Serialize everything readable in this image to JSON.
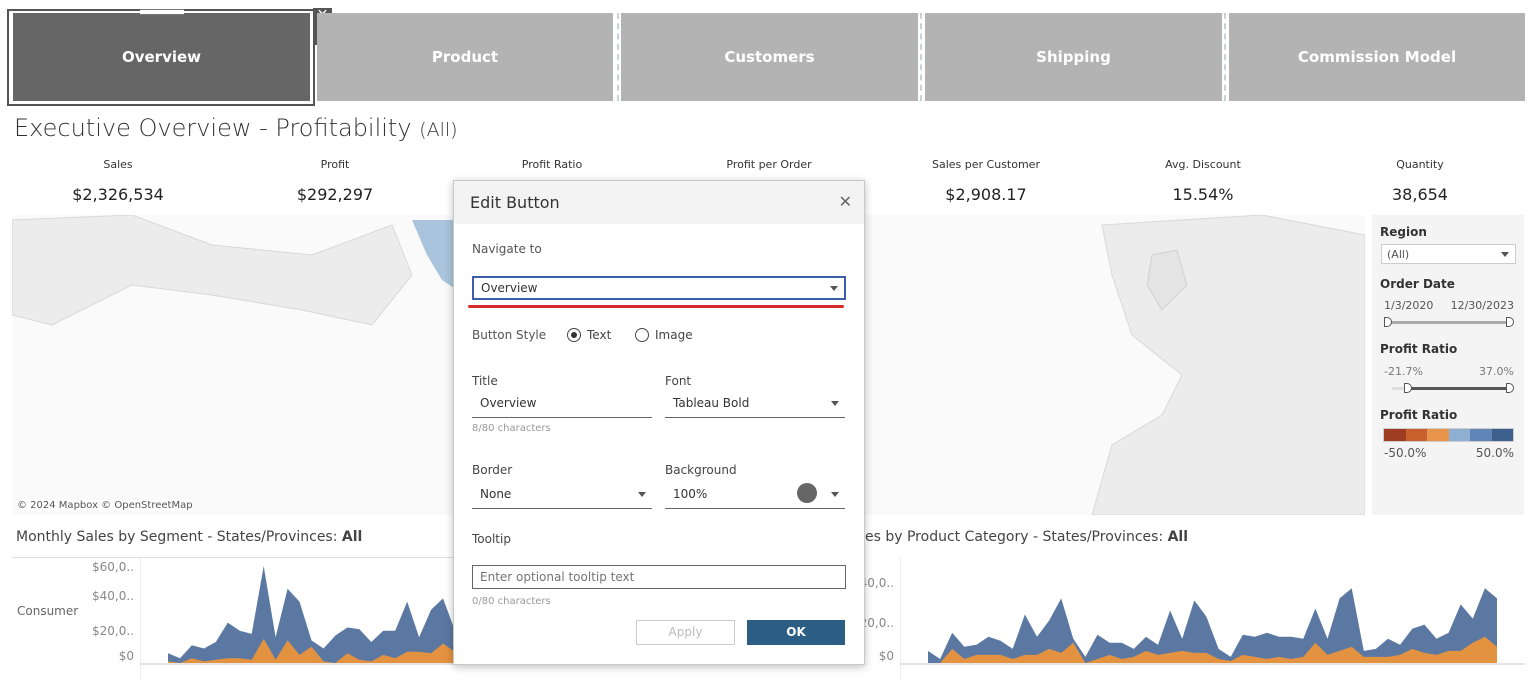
{
  "nav": {
    "buttons": [
      "Overview",
      "Product",
      "Customers",
      "Shipping",
      "Commission Model"
    ],
    "active": "Overview"
  },
  "title": {
    "main": "Executive Overview - Profitability",
    "filter": "(All)"
  },
  "kpis": [
    {
      "label": "Sales",
      "value": "$2,326,534"
    },
    {
      "label": "Profit",
      "value": "$292,297"
    },
    {
      "label": "Profit Ratio",
      "value": ""
    },
    {
      "label": "Profit per Order",
      "value": ""
    },
    {
      "label": "Sales per Customer",
      "value": "$2,908.17"
    },
    {
      "label": "Avg. Discount",
      "value": "15.54%"
    },
    {
      "label": "Quantity",
      "value": "38,654"
    }
  ],
  "map": {
    "attribution": "© 2024 Mapbox © OpenStreetMap"
  },
  "filters": {
    "region_label": "Region",
    "region_value": "(All)",
    "order_date_label": "Order Date",
    "order_date_min": "1/3/2020",
    "order_date_max": "12/30/2023",
    "profit_ratio_label": "Profit Ratio",
    "profit_ratio_min": "-21.7%",
    "profit_ratio_max": "37.0%",
    "legend_label": "Profit Ratio",
    "legend_min": "-50.0%",
    "legend_max": "50.0%",
    "legend_colors": [
      "#9e3d22",
      "#c8602c",
      "#e8944a",
      "#8fb0d3",
      "#5f86b7",
      "#3c5f8e"
    ]
  },
  "dialog": {
    "title": "Edit Button",
    "navigate_label": "Navigate to",
    "navigate_value": "Overview",
    "style_label": "Button Style",
    "style_text": "Text",
    "style_image": "Image",
    "title_label": "Title",
    "title_value": "Overview",
    "title_count": "8/80 characters",
    "font_label": "Font",
    "font_value": "Tableau Bold",
    "border_label": "Border",
    "border_value": "None",
    "background_label": "Background",
    "background_value": "100%",
    "background_color": "#666666",
    "tooltip_label": "Tooltip",
    "tooltip_placeholder": "Enter optional tooltip text",
    "tooltip_count": "0/80 characters",
    "apply": "Apply",
    "ok": "OK"
  },
  "chart_data": [
    {
      "type": "area",
      "title": "Monthly Sales by Segment - States/Provinces:",
      "title_bold": "All",
      "row_label": "Consumer",
      "yticks": [
        "$60,0..",
        "$40,0..",
        "$20,0..",
        "$0"
      ],
      "ylim": [
        0,
        65000
      ],
      "series": [
        {
          "name": "blue",
          "color": "#5b78a3",
          "values": [
            6000,
            3000,
            11000,
            9000,
            13000,
            25000,
            20000,
            18000,
            60000,
            16000,
            46000,
            38000,
            14000,
            9000,
            17000,
            22000,
            21000,
            13000,
            20000,
            20000,
            38000,
            16000,
            33000,
            40000,
            20000
          ]
        },
        {
          "name": "orange",
          "color": "#e3923f",
          "values": [
            1000,
            0,
            3000,
            1000,
            2000,
            3000,
            3000,
            2000,
            15000,
            2000,
            14000,
            5000,
            10000,
            1000,
            0,
            6000,
            2000,
            1000,
            5000,
            3000,
            7000,
            7000,
            6000,
            12000,
            7000
          ]
        }
      ]
    },
    {
      "type": "area",
      "title": "es by Product Category - States/Provinces:",
      "title_bold": "All",
      "yticks": [
        "40,0..",
        "20,0..",
        "$0"
      ],
      "ylim": [
        0,
        52000
      ],
      "series": [
        {
          "name": "blue",
          "color": "#5b78a3",
          "values": [
            6000,
            2000,
            15000,
            8000,
            9000,
            13000,
            11000,
            7000,
            24000,
            13000,
            21000,
            32000,
            12000,
            3000,
            14000,
            10000,
            10000,
            7000,
            13000,
            9000,
            26000,
            12000,
            31000,
            23000,
            7000,
            3000,
            14000,
            13000,
            15000,
            13000,
            13000,
            12000,
            27000,
            12000,
            32000,
            37000,
            6000,
            7000,
            12000,
            9000,
            17000,
            19000,
            12000,
            15000,
            29000,
            22000,
            37000,
            32000
          ]
        },
        {
          "name": "orange",
          "color": "#e3923f",
          "values": [
            0,
            0,
            7000,
            2000,
            4000,
            4000,
            4000,
            2000,
            4000,
            4000,
            7000,
            5000,
            10000,
            0,
            2000,
            4000,
            2000,
            3000,
            6000,
            4000,
            5000,
            6000,
            5000,
            5000,
            2000,
            1000,
            4000,
            3000,
            2000,
            3000,
            2000,
            3000,
            10000,
            4000,
            6000,
            8000,
            3000,
            3000,
            3000,
            4000,
            7000,
            5000,
            4000,
            6000,
            6000,
            10000,
            13000,
            8000
          ]
        }
      ]
    }
  ]
}
